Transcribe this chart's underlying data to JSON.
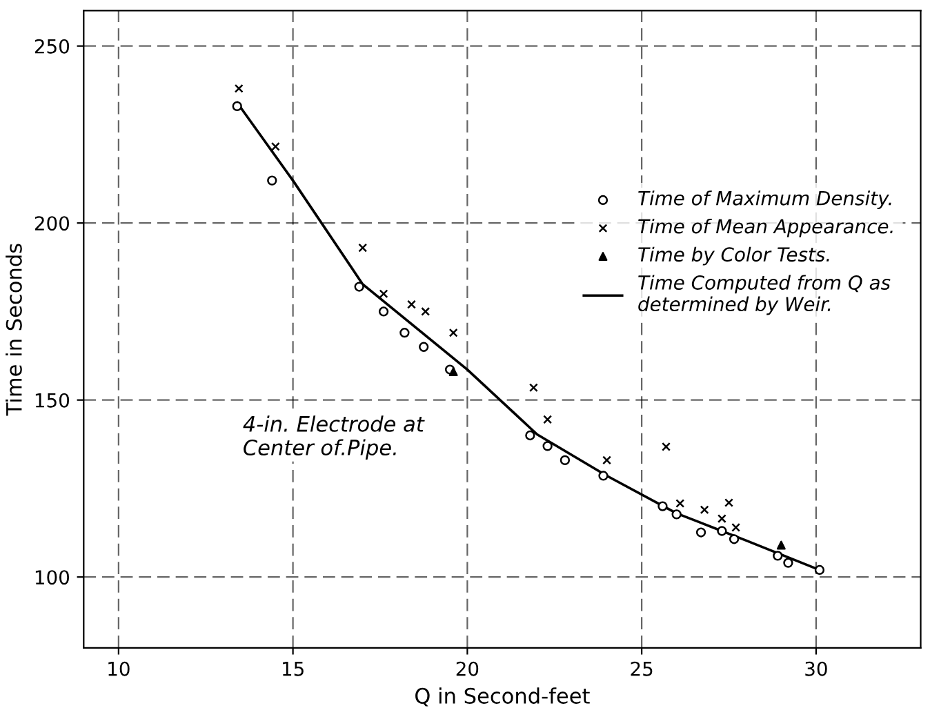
{
  "chart_data": {
    "type": "scatter",
    "xlabel": "Q in Second-feet",
    "ylabel": "Time in Seconds",
    "xlim": [
      9,
      33
    ],
    "ylim": [
      80,
      260
    ],
    "xticks": [
      10,
      15,
      20,
      25,
      30
    ],
    "yticks": [
      100,
      150,
      200,
      250
    ],
    "grid": true,
    "legend": "right",
    "annotations": [
      "4-in. Electrode at\nCenter of.Pipe."
    ],
    "series": [
      {
        "name": "Time of Maximum Density.",
        "marker": "circle",
        "color": "#000000",
        "x": [
          13.4,
          14.4,
          16.9,
          17.6,
          18.2,
          18.75,
          19.5,
          21.8,
          22.3,
          22.8,
          23.9,
          25.6,
          26.0,
          26.7,
          27.3,
          27.65,
          28.9,
          29.2,
          30.1
        ],
        "values": [
          233,
          212,
          182,
          175,
          169,
          165,
          158.6,
          140,
          137,
          133,
          128.6,
          120,
          117.7,
          112.6,
          113,
          110.7,
          106,
          104,
          102
        ]
      },
      {
        "name": "Time of Mean Appearance.",
        "marker": "cross",
        "color": "#000000",
        "x": [
          13.45,
          14.5,
          17.0,
          17.6,
          18.4,
          18.8,
          19.6,
          21.9,
          22.3,
          24.0,
          25.7,
          26.1,
          26.8,
          27.5,
          27.3,
          27.7
        ],
        "values": [
          238,
          221.6,
          193,
          180,
          177,
          175,
          169,
          153.5,
          144.5,
          133,
          136.8,
          120.8,
          119,
          121,
          116.5,
          114
        ]
      },
      {
        "name": "Time by Color Tests.",
        "marker": "triangle",
        "color": "#000000",
        "x": [
          19.6,
          29.0
        ],
        "values": [
          158,
          109
        ]
      },
      {
        "name": "Time Computed from Q as\ndetermined by Weir.",
        "type": "line",
        "marker": "none",
        "line_style": "solid",
        "color": "#000000",
        "x": [
          13.4,
          15,
          17,
          20,
          22,
          24,
          26,
          28,
          30.1
        ],
        "values": [
          234,
          212,
          182.7,
          158.6,
          140.3,
          128.6,
          118,
          110.3,
          102
        ]
      }
    ]
  }
}
